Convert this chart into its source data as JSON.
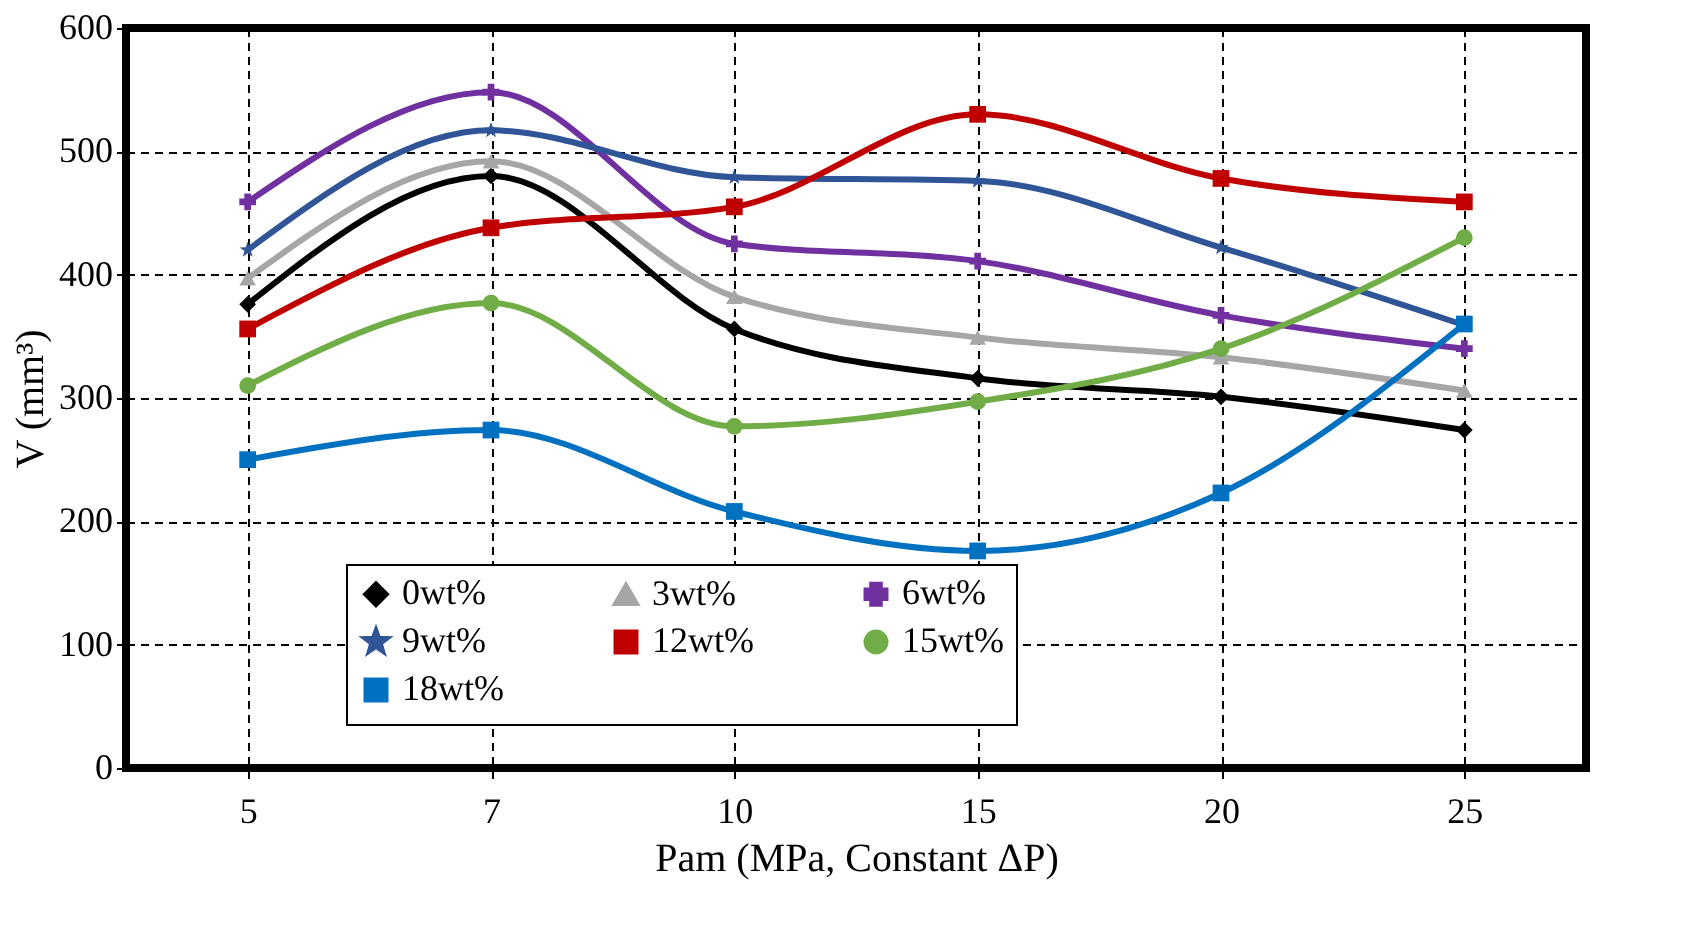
{
  "chart_data": {
    "type": "line",
    "xlabel": "Pam (MPa, Constant ΔP)",
    "ylabel": "V (mm³)",
    "categories": [
      "5",
      "7",
      "10",
      "15",
      "20",
      "25"
    ],
    "ylim": [
      0,
      600
    ],
    "yticks": [
      0,
      100,
      200,
      300,
      400,
      500,
      600
    ],
    "grid": true,
    "legend": "bottom",
    "line_style": "solid",
    "series": [
      {
        "name": "0wt%",
        "color": "#000000",
        "marker": "diamond",
        "values": [
          376,
          480,
          356,
          316,
          301,
          274
        ]
      },
      {
        "name": "3wt%",
        "color": "#a6a6a6",
        "marker": "triangle",
        "values": [
          397,
          492,
          382,
          349,
          333,
          306
        ]
      },
      {
        "name": "6wt%",
        "color": "#7030a0",
        "marker": "cross",
        "values": [
          459,
          548,
          425,
          411,
          367,
          340
        ]
      },
      {
        "name": "9wt%",
        "color": "#2f5597",
        "marker": "star",
        "values": [
          420,
          517,
          479,
          476,
          422,
          359
        ]
      },
      {
        "name": "12wt%",
        "color": "#c00000",
        "marker": "square",
        "values": [
          356,
          438,
          455,
          530,
          478,
          459
        ]
      },
      {
        "name": "15wt%",
        "color": "#70ad47",
        "marker": "circle",
        "values": [
          310,
          377,
          277,
          297,
          340,
          430
        ]
      },
      {
        "name": "18wt%",
        "color": "#0070c0",
        "marker": "square",
        "values": [
          250,
          274,
          208,
          176,
          223,
          360
        ]
      }
    ]
  }
}
